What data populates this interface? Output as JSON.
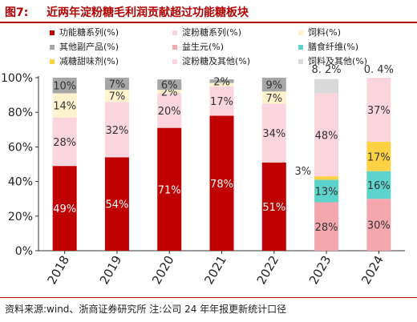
{
  "figure": {
    "number": "图7:",
    "title": "近两年淀粉糖毛利润贡献超过功能糖板块",
    "source": "资料来源:wind、浙商证券研究所 注:公司 24 年年报更新统计口径"
  },
  "chart_data": {
    "type": "bar",
    "stacked": true,
    "categories": [
      "2018",
      "2019",
      "2020",
      "2021",
      "2022",
      "2023",
      "2024"
    ],
    "ylim": [
      0,
      100
    ],
    "yticks": [
      "0%",
      "20%",
      "40%",
      "60%",
      "80%",
      "100%"
    ],
    "legend_position": "top",
    "series": [
      {
        "name": "功能糖系列(%)",
        "color": "#c00000",
        "values": [
          49,
          54,
          71,
          78,
          51,
          null,
          null
        ],
        "labels": [
          "49%",
          "54%",
          "71%",
          "78%",
          "51%",
          "",
          ""
        ]
      },
      {
        "name": "淀粉糖系列(%)",
        "color": "#fbd5dd",
        "values": [
          28,
          32,
          20,
          17,
          34,
          null,
          null
        ],
        "labels": [
          "28%",
          "32%",
          "20%",
          "17%",
          "34%",
          "",
          ""
        ]
      },
      {
        "name": "饲料(%)",
        "color": "#fff2cc",
        "values": [
          14,
          7,
          2,
          2,
          7,
          null,
          null
        ],
        "labels": [
          "14%",
          "7%",
          "2%",
          "",
          "7%",
          "",
          ""
        ]
      },
      {
        "name": "其他副产品(%)",
        "color": "#a6a6a6",
        "values": [
          10,
          7,
          6,
          2,
          9,
          null,
          null
        ],
        "labels": [
          "10%",
          "7%",
          "6%",
          "2%",
          "9%",
          "",
          ""
        ]
      },
      {
        "name": "益生元(%)",
        "color": "#f4a7ad",
        "values": [
          null,
          null,
          null,
          null,
          null,
          28,
          30
        ],
        "labels": [
          "",
          "",
          "",
          "",
          "",
          "28%",
          "30%"
        ]
      },
      {
        "name": "膳食纤维(%)",
        "color": "#5ed3cc",
        "values": [
          null,
          null,
          null,
          null,
          null,
          13,
          16
        ],
        "labels": [
          "",
          "",
          "",
          "",
          "",
          "13%",
          "16%"
        ]
      },
      {
        "name": "减糖甜味剂(%)",
        "color": "#ffd243",
        "values": [
          null,
          null,
          null,
          null,
          null,
          2,
          17
        ],
        "labels": [
          "",
          "",
          "",
          "",
          "",
          "",
          "17%"
        ]
      },
      {
        "name": "淀粉糖及其他(%)",
        "color": "#fbd5dd",
        "values": [
          null,
          null,
          null,
          null,
          null,
          48,
          37
        ],
        "labels": [
          "",
          "",
          "",
          "",
          "",
          "48%",
          "37%"
        ]
      },
      {
        "name": "饲料及其他(%)",
        "color": "#d9d9d9",
        "values": [
          null,
          null,
          null,
          null,
          null,
          8.2,
          0.4
        ],
        "labels": [
          "",
          "",
          "",
          "",
          "",
          "8. 2%",
          "0. 4%"
        ]
      }
    ],
    "annotations": [
      {
        "category": "2023",
        "text": "3%",
        "placement": "left-of-bar"
      }
    ]
  }
}
